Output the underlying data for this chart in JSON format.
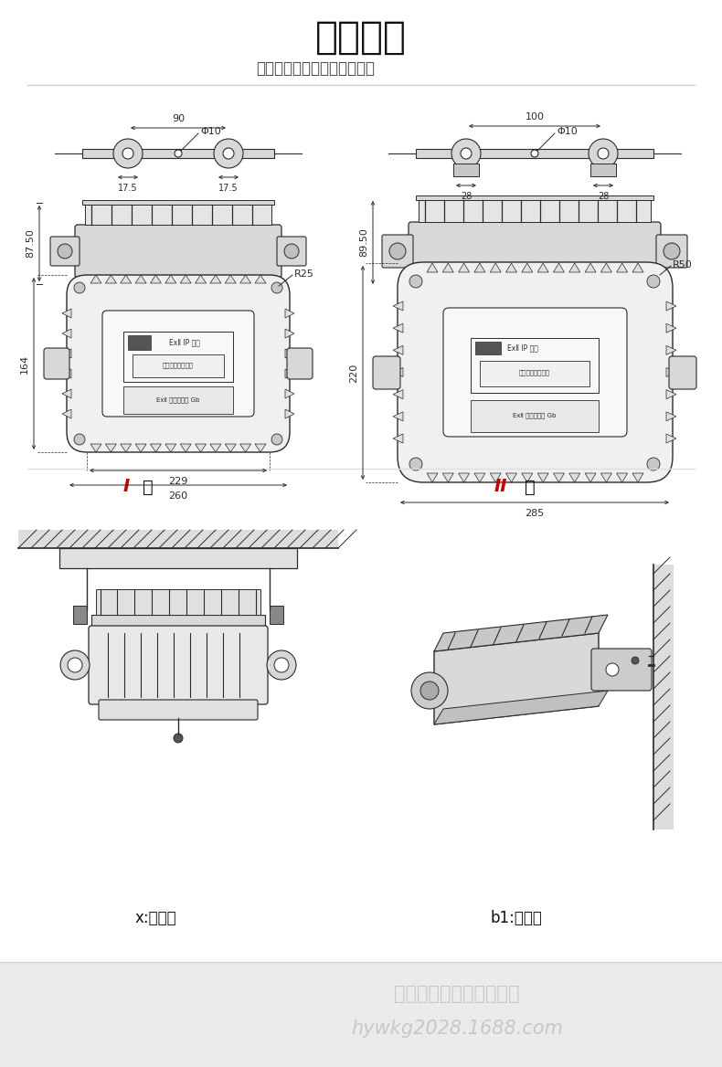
{
  "title": "安装方式",
  "subtitle": "轻松了解如何安装简单、防便",
  "bg_color": "#ffffff",
  "footer_bg_color": "#ebebeb",
  "footer_line1": "金阳王科技股份有限公司",
  "footer_line2": "hywkg2028.1688.com",
  "footer_text_color": "#c8c8c8",
  "divider_color": "#cccccc",
  "drawing_color": "#2a2a2a",
  "dim_color": "#2a2a2a",
  "label_type1_red": "I",
  "label_type1_black": " 型",
  "label_type2_red": "II",
  "label_type2_black": " 型",
  "label_mount1": "x:吸顶式",
  "label_mount2": "b1:吸壁式",
  "red_color": "#cc0000",
  "light_gray": "#d8d8d8",
  "mid_gray": "#b0b0b0",
  "dark_gray": "#888888"
}
